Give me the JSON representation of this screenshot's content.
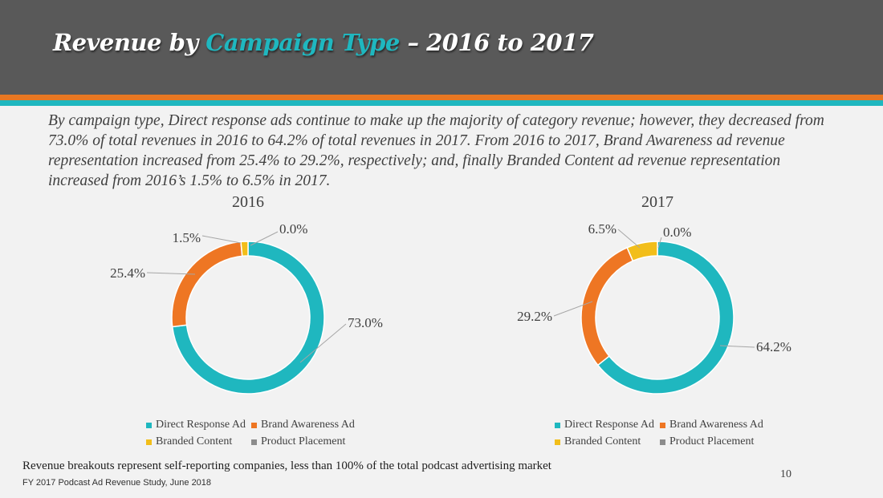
{
  "slide": {
    "title_prefix": "Revenue by ",
    "title_accent": "Campaign Type",
    "title_suffix": " – 2016 to 2017",
    "description": "By campaign type, Direct response ads continue to make up the majority of category revenue; however, they decreased from 73.0% of total revenues in 2016 to 64.2% of total revenues in 2017. From 2016 to 2017, Brand Awareness ad revenue representation increased from 25.4% to 29.2%, respectively; and, finally Branded Content ad revenue representation increased from 2016’s 1.5% to 6.5% in 2017.",
    "footnote": "Revenue breakouts represent self-reporting companies, less than 100% of the total podcast advertising market",
    "source": "FY 2017 Podcast Ad Revenue Study, June 2018",
    "page_number": "10"
  },
  "colors": {
    "header_bg": "#595959",
    "accent_teal": "#1fb7bf",
    "accent_orange": "#e87722"
  },
  "chart_data": [
    {
      "type": "pie",
      "title": "2016",
      "categories": [
        "Direct Response Ad",
        "Brand Awareness Ad",
        "Branded Content",
        "Product Placement"
      ],
      "values": [
        73.0,
        25.4,
        1.5,
        0.0
      ],
      "labels": [
        "73.0%",
        "25.4%",
        "1.5%",
        "0.0%"
      ],
      "colors": [
        "#1fb7bf",
        "#ee7623",
        "#f2be1a",
        "#8c8c8c"
      ],
      "legend": "bottom"
    },
    {
      "type": "pie",
      "title": "2017",
      "categories": [
        "Direct Response Ad",
        "Brand Awareness Ad",
        "Branded Content",
        "Product Placement"
      ],
      "values": [
        64.2,
        29.2,
        6.5,
        0.0
      ],
      "labels": [
        "64.2%",
        "29.2%",
        "6.5%",
        "0.0%"
      ],
      "colors": [
        "#1fb7bf",
        "#ee7623",
        "#f2be1a",
        "#8c8c8c"
      ],
      "legend": "bottom"
    }
  ]
}
